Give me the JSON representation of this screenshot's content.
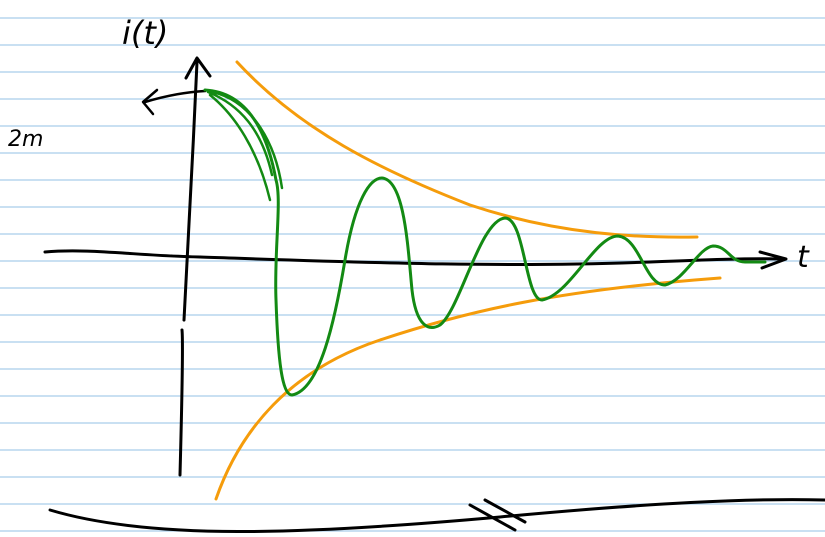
{
  "labels": {
    "vertical_axis": "i(t)",
    "level": "2m",
    "horizontal_axis": "t"
  }
}
